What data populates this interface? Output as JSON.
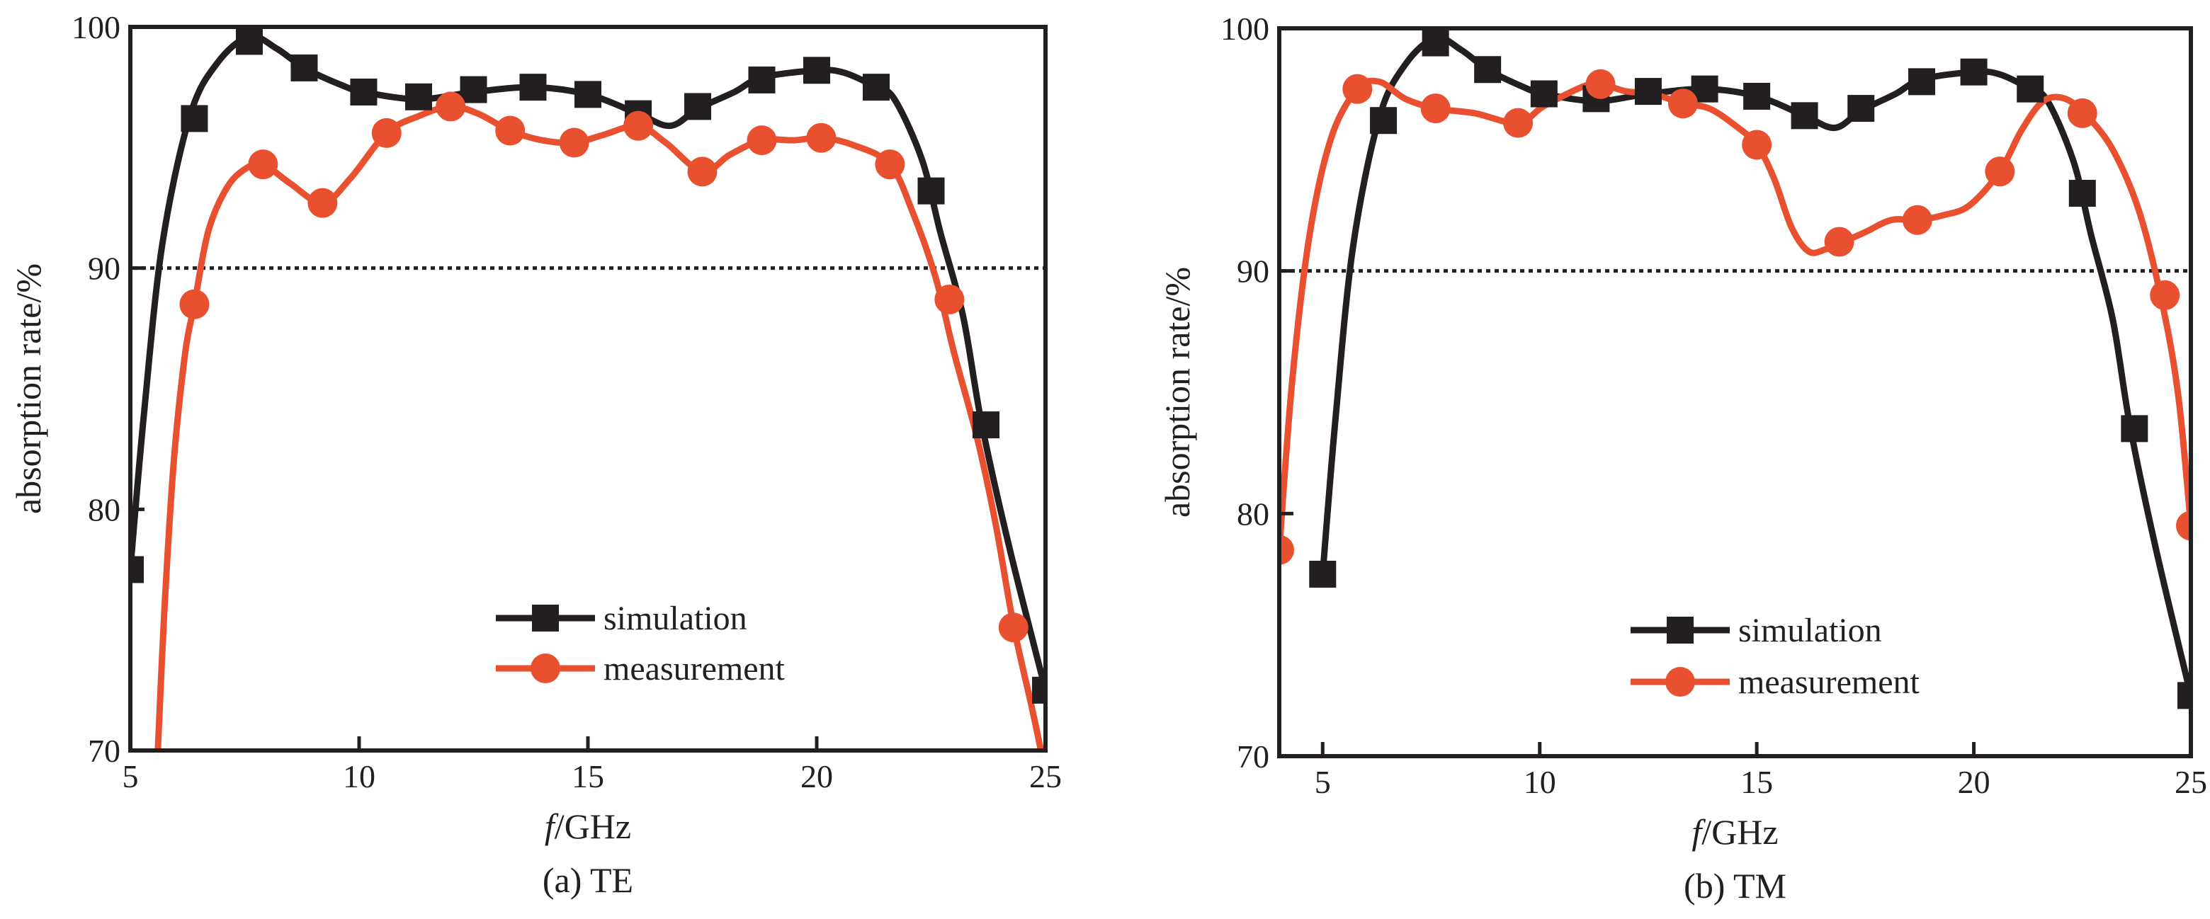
{
  "chart_data": [
    {
      "type": "line",
      "caption": "(a) TE",
      "xlabel_italic": "f",
      "xlabel_rest": "/GHz",
      "ylabel": "absorption rate/%",
      "xlim": [
        5,
        25
      ],
      "ylim": [
        70,
        100
      ],
      "xticks": [
        5,
        10,
        15,
        20,
        25
      ],
      "yticks": [
        70,
        80,
        90,
        100
      ],
      "reference_line": 90,
      "legend_position": "lower-center",
      "series": [
        {
          "name": "simulation",
          "color": "#231f20",
          "marker": "square",
          "curve": [
            [
              5.0,
              77.5
            ],
            [
              5.3,
              84
            ],
            [
              5.7,
              91
            ],
            [
              6.3,
              96.3
            ],
            [
              6.9,
              98.5
            ],
            [
              7.6,
              99.6
            ],
            [
              8.2,
              99.1
            ],
            [
              8.8,
              98.3
            ],
            [
              9.6,
              97.6
            ],
            [
              10.1,
              97.3
            ],
            [
              11.3,
              97.0
            ],
            [
              12.5,
              97.3
            ],
            [
              13.8,
              97.5
            ],
            [
              15.0,
              97.2
            ],
            [
              16.1,
              96.4
            ],
            [
              16.8,
              95.9
            ],
            [
              17.4,
              96.6
            ],
            [
              18.2,
              97.3
            ],
            [
              18.8,
              97.9
            ],
            [
              20.0,
              98.2
            ],
            [
              20.6,
              98.1
            ],
            [
              21.3,
              97.5
            ],
            [
              21.7,
              97.0
            ],
            [
              22.3,
              94.5
            ],
            [
              22.7,
              91.5
            ],
            [
              23.2,
              88.0
            ],
            [
              23.6,
              83.6
            ],
            [
              24.2,
              78.5
            ],
            [
              25.0,
              72.5
            ]
          ],
          "markers": [
            [
              5.0,
              77.5
            ],
            [
              6.4,
              96.2
            ],
            [
              7.6,
              99.4
            ],
            [
              8.8,
              98.3
            ],
            [
              10.1,
              97.3
            ],
            [
              11.3,
              97.1
            ],
            [
              12.5,
              97.4
            ],
            [
              13.8,
              97.5
            ],
            [
              15.0,
              97.2
            ],
            [
              16.1,
              96.4
            ],
            [
              17.4,
              96.7
            ],
            [
              18.8,
              97.8
            ],
            [
              20.0,
              98.2
            ],
            [
              21.3,
              97.5
            ],
            [
              22.5,
              93.2
            ],
            [
              23.7,
              83.5
            ],
            [
              25.0,
              72.5
            ]
          ]
        },
        {
          "name": "measurement",
          "color": "#e8502f",
          "marker": "circle",
          "curve": [
            [
              5.6,
              70.0
            ],
            [
              5.75,
              76
            ],
            [
              5.95,
              82
            ],
            [
              6.2,
              86.5
            ],
            [
              6.4,
              88.5
            ],
            [
              6.7,
              91.5
            ],
            [
              7.1,
              93.3
            ],
            [
              7.5,
              94.1
            ],
            [
              7.9,
              94.3
            ],
            [
              8.5,
              93.5
            ],
            [
              9.2,
              92.7
            ],
            [
              9.8,
              93.7
            ],
            [
              10.6,
              95.6
            ],
            [
              11.3,
              96.3
            ],
            [
              12.0,
              96.7
            ],
            [
              12.6,
              96.4
            ],
            [
              13.3,
              95.7
            ],
            [
              14.0,
              95.3
            ],
            [
              14.7,
              95.2
            ],
            [
              15.3,
              95.5
            ],
            [
              16.1,
              95.9
            ],
            [
              16.7,
              95.2
            ],
            [
              17.5,
              94.0
            ],
            [
              18.1,
              94.7
            ],
            [
              18.8,
              95.3
            ],
            [
              19.5,
              95.3
            ],
            [
              20.1,
              95.4
            ],
            [
              20.8,
              95.1
            ],
            [
              21.6,
              94.3
            ],
            [
              22.1,
              92.3
            ],
            [
              22.6,
              89.6
            ],
            [
              23.0,
              86.5
            ],
            [
              23.5,
              83.0
            ],
            [
              23.9,
              79.5
            ],
            [
              24.3,
              75.2
            ],
            [
              24.7,
              71.8
            ],
            [
              24.9,
              70.0
            ]
          ],
          "markers": [
            [
              6.4,
              88.5
            ],
            [
              7.9,
              94.3
            ],
            [
              9.2,
              92.7
            ],
            [
              10.6,
              95.6
            ],
            [
              12.0,
              96.7
            ],
            [
              13.3,
              95.7
            ],
            [
              14.7,
              95.2
            ],
            [
              16.1,
              95.9
            ],
            [
              17.5,
              94.0
            ],
            [
              18.8,
              95.3
            ],
            [
              20.1,
              95.4
            ],
            [
              21.6,
              94.3
            ],
            [
              22.9,
              88.7
            ],
            [
              24.3,
              75.1
            ]
          ]
        }
      ]
    },
    {
      "type": "line",
      "caption": "(b) TM",
      "xlabel_italic": "f",
      "xlabel_rest": "/GHz",
      "ylabel": "absorption rate/%",
      "xlim": [
        4,
        25
      ],
      "ylim": [
        70,
        100
      ],
      "xticks": [
        5,
        10,
        15,
        20,
        25
      ],
      "yticks": [
        70,
        80,
        90,
        100
      ],
      "reference_line": 90,
      "legend_position": "lower-center",
      "series": [
        {
          "name": "simulation",
          "color": "#231f20",
          "marker": "square",
          "curve": [
            [
              5.0,
              77.5
            ],
            [
              5.3,
              84
            ],
            [
              5.7,
              91
            ],
            [
              6.3,
              96.3
            ],
            [
              6.9,
              98.5
            ],
            [
              7.6,
              99.6
            ],
            [
              8.2,
              99.1
            ],
            [
              8.8,
              98.3
            ],
            [
              9.6,
              97.6
            ],
            [
              10.1,
              97.3
            ],
            [
              11.3,
              97.0
            ],
            [
              12.5,
              97.3
            ],
            [
              13.8,
              97.5
            ],
            [
              15.0,
              97.2
            ],
            [
              16.1,
              96.4
            ],
            [
              16.8,
              95.9
            ],
            [
              17.4,
              96.6
            ],
            [
              18.2,
              97.3
            ],
            [
              18.8,
              97.9
            ],
            [
              20.0,
              98.2
            ],
            [
              20.6,
              98.1
            ],
            [
              21.3,
              97.5
            ],
            [
              21.7,
              97.0
            ],
            [
              22.3,
              94.5
            ],
            [
              22.7,
              91.5
            ],
            [
              23.2,
              88.0
            ],
            [
              23.6,
              83.6
            ],
            [
              24.2,
              78.5
            ],
            [
              25.0,
              72.5
            ]
          ],
          "markers": [
            [
              5.0,
              77.5
            ],
            [
              6.4,
              96.2
            ],
            [
              7.6,
              99.4
            ],
            [
              8.8,
              98.3
            ],
            [
              10.1,
              97.3
            ],
            [
              11.3,
              97.1
            ],
            [
              12.5,
              97.4
            ],
            [
              13.8,
              97.5
            ],
            [
              15.0,
              97.2
            ],
            [
              16.1,
              96.4
            ],
            [
              17.4,
              96.7
            ],
            [
              18.8,
              97.8
            ],
            [
              20.0,
              98.2
            ],
            [
              21.3,
              97.5
            ],
            [
              22.5,
              93.2
            ],
            [
              23.7,
              83.5
            ],
            [
              25.0,
              72.5
            ]
          ]
        },
        {
          "name": "measurement",
          "color": "#e8502f",
          "marker": "circle",
          "curve": [
            [
              4.0,
              78.5
            ],
            [
              4.3,
              85.5
            ],
            [
              4.7,
              91.5
            ],
            [
              5.2,
              95.5
            ],
            [
              5.8,
              97.5
            ],
            [
              6.3,
              97.8
            ],
            [
              6.9,
              97.1
            ],
            [
              7.6,
              96.7
            ],
            [
              8.5,
              96.5
            ],
            [
              9.5,
              96.1
            ],
            [
              10.1,
              96.8
            ],
            [
              11.0,
              97.6
            ],
            [
              11.4,
              97.7
            ],
            [
              12.0,
              97.4
            ],
            [
              12.6,
              97.3
            ],
            [
              13.3,
              96.9
            ],
            [
              13.9,
              96.7
            ],
            [
              14.5,
              96.0
            ],
            [
              15.0,
              95.2
            ],
            [
              15.4,
              93.8
            ],
            [
              15.8,
              91.8
            ],
            [
              16.2,
              90.8
            ],
            [
              16.6,
              90.9
            ],
            [
              17.0,
              91.2
            ],
            [
              17.5,
              91.6
            ],
            [
              18.1,
              92.1
            ],
            [
              18.7,
              92.1
            ],
            [
              19.3,
              92.3
            ],
            [
              19.9,
              92.7
            ],
            [
              20.6,
              94.1
            ],
            [
              21.1,
              95.8
            ],
            [
              21.6,
              97.0
            ],
            [
              22.1,
              97.1
            ],
            [
              22.6,
              96.4
            ],
            [
              23.2,
              95.0
            ],
            [
              23.8,
              92.5
            ],
            [
              24.3,
              89.0
            ],
            [
              24.7,
              85.0
            ],
            [
              25.0,
              79.5
            ]
          ],
          "markers": [
            [
              4.0,
              78.5
            ],
            [
              5.8,
              97.5
            ],
            [
              7.6,
              96.7
            ],
            [
              9.5,
              96.1
            ],
            [
              11.4,
              97.7
            ],
            [
              13.3,
              96.9
            ],
            [
              15.0,
              95.2
            ],
            [
              16.9,
              91.2
            ],
            [
              18.7,
              92.1
            ],
            [
              20.6,
              94.1
            ],
            [
              22.5,
              96.5
            ],
            [
              24.4,
              89.0
            ],
            [
              25.0,
              79.5
            ]
          ]
        }
      ]
    }
  ]
}
